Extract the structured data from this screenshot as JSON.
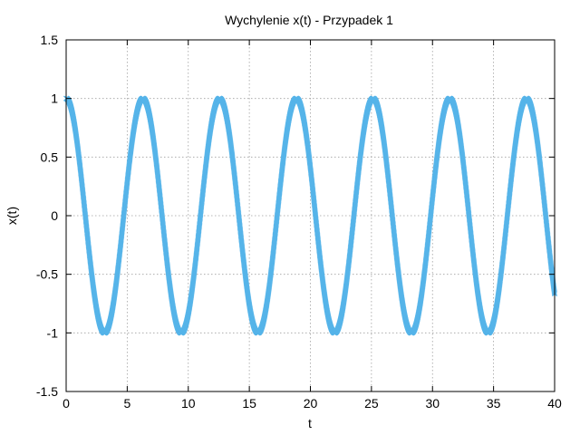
{
  "chart_data": {
    "type": "scatter",
    "title": "Wychylenie x(t) - Przypadek 1",
    "xlabel": "t",
    "ylabel": "x(t)",
    "xlim": [
      0,
      40
    ],
    "ylim": [
      -1.5,
      1.5
    ],
    "x_ticks": [
      0,
      5,
      10,
      15,
      20,
      25,
      30,
      35,
      40
    ],
    "y_ticks": [
      -1.5,
      -1,
      -0.5,
      0,
      0.5,
      1,
      1.5
    ],
    "x_tick_labels": [
      "0",
      "5",
      "10",
      "15",
      "20",
      "25",
      "30",
      "35",
      "40"
    ],
    "y_tick_labels": [
      "-1.5",
      "-1",
      "-0.5",
      "0",
      "0.5",
      "1",
      "1.5"
    ],
    "grid": true,
    "legend": "none",
    "marker": "x",
    "series": [
      {
        "color": "#56b4e9",
        "function": "cos(t)",
        "t_start": 0,
        "t_end": 40,
        "samples": 4000
      }
    ]
  }
}
